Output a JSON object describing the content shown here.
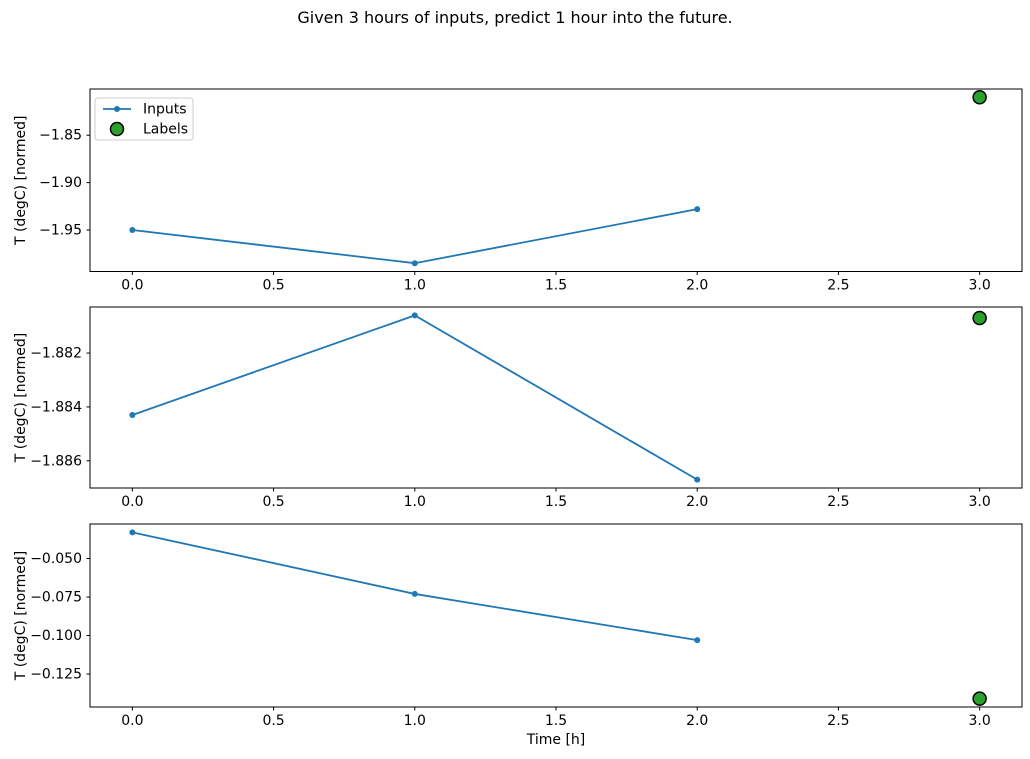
{
  "figure": {
    "title": "Given 3 hours of inputs, predict 1 hour into the future.",
    "xlabel": "Time [h]",
    "background": "#ffffff",
    "colors": {
      "inputs": "#1f77b4",
      "labels": "#2ca02c",
      "labels_edge": "#000000",
      "axis": "#000000",
      "text": "#000000",
      "legend_border": "#cccccc",
      "legend_fill": "#ffffff"
    }
  },
  "legend": {
    "items": [
      {
        "label": "Inputs",
        "marker": "line-dot",
        "color": "#1f77b4"
      },
      {
        "label": "Labels",
        "marker": "circle",
        "color": "#2ca02c"
      }
    ]
  },
  "chart_data": [
    {
      "type": "line",
      "subplot": 1,
      "title": "",
      "xlabel": "",
      "ylabel": "T (degC) [normed]",
      "series": [
        {
          "name": "Inputs",
          "kind": "line-markers",
          "x": [
            0.0,
            1.0,
            2.0
          ],
          "y": [
            -1.95,
            -1.985,
            -1.928
          ],
          "color": "#1f77b4"
        },
        {
          "name": "Labels",
          "kind": "scatter",
          "x": [
            3.0
          ],
          "y": [
            -1.81
          ],
          "color": "#2ca02c",
          "edge_color": "#000000"
        }
      ],
      "xlim": [
        -0.15,
        3.15
      ],
      "ylim": [
        -1.99375,
        -1.80125
      ],
      "xticks": [
        0.0,
        0.5,
        1.0,
        1.5,
        2.0,
        2.5,
        3.0
      ],
      "xtick_labels": [
        "0.0",
        "0.5",
        "1.0",
        "1.5",
        "2.0",
        "2.5",
        "3.0"
      ],
      "yticks": [
        -1.85,
        -1.9,
        -1.95
      ],
      "ytick_labels": [
        "−1.85",
        "−1.90",
        "−1.95"
      ],
      "legend": true,
      "legend_position": "upper left",
      "grid": false
    },
    {
      "type": "line",
      "subplot": 2,
      "title": "",
      "xlabel": "",
      "ylabel": "T (degC) [normed]",
      "series": [
        {
          "name": "Inputs",
          "kind": "line-markers",
          "x": [
            0.0,
            1.0,
            2.0
          ],
          "y": [
            -1.8843,
            -1.8806,
            -1.8867
          ],
          "color": "#1f77b4"
        },
        {
          "name": "Labels",
          "kind": "scatter",
          "x": [
            3.0
          ],
          "y": [
            -1.8807
          ],
          "color": "#2ca02c",
          "edge_color": "#000000"
        }
      ],
      "xlim": [
        -0.15,
        3.15
      ],
      "ylim": [
        -1.88701,
        -1.88029
      ],
      "xticks": [
        0.0,
        0.5,
        1.0,
        1.5,
        2.0,
        2.5,
        3.0
      ],
      "xtick_labels": [
        "0.0",
        "0.5",
        "1.0",
        "1.5",
        "2.0",
        "2.5",
        "3.0"
      ],
      "yticks": [
        -1.882,
        -1.884,
        -1.886
      ],
      "ytick_labels": [
        "−1.882",
        "−1.884",
        "−1.886"
      ],
      "legend": false,
      "grid": false
    },
    {
      "type": "line",
      "subplot": 3,
      "title": "",
      "xlabel": "Time [h]",
      "ylabel": "T (degC) [normed]",
      "series": [
        {
          "name": "Inputs",
          "kind": "line-markers",
          "x": [
            0.0,
            1.0,
            2.0
          ],
          "y": [
            -0.033,
            -0.073,
            -0.103
          ],
          "color": "#1f77b4"
        },
        {
          "name": "Labels",
          "kind": "scatter",
          "x": [
            3.0
          ],
          "y": [
            -0.141
          ],
          "color": "#2ca02c",
          "edge_color": "#000000"
        }
      ],
      "xlim": [
        -0.15,
        3.15
      ],
      "ylim": [
        -0.1464,
        -0.0276
      ],
      "xticks": [
        0.0,
        0.5,
        1.0,
        1.5,
        2.0,
        2.5,
        3.0
      ],
      "xtick_labels": [
        "0.0",
        "0.5",
        "1.0",
        "1.5",
        "2.0",
        "2.5",
        "3.0"
      ],
      "yticks": [
        -0.05,
        -0.075,
        -0.1,
        -0.125
      ],
      "ytick_labels": [
        "−0.050",
        "−0.075",
        "−0.100",
        "−0.125"
      ],
      "legend": false,
      "grid": false
    }
  ]
}
